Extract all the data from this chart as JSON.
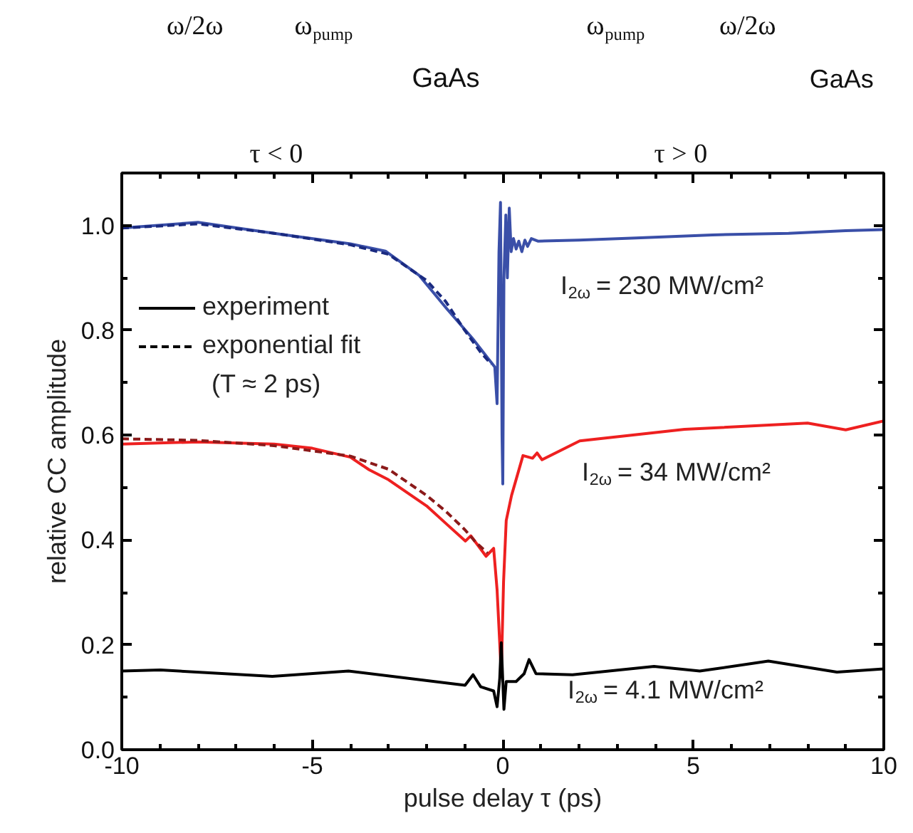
{
  "chart_data": {
    "type": "line",
    "xlabel": "pulse delay τ (ps)",
    "ylabel": "relative CC amplitude",
    "xlim": [
      -10,
      10
    ],
    "xticks": [
      -10,
      {
        "value": -9,
        "label": null
      },
      {
        "value": -8,
        "label": null
      },
      {
        "value": -7,
        "label": null
      },
      {
        "value": -6,
        "label": null
      },
      -5,
      {
        "value": -4,
        "label": null
      },
      {
        "value": -3,
        "label": null
      },
      {
        "value": -2,
        "label": null
      },
      {
        "value": -1,
        "label": null
      },
      0,
      {
        "value": 1,
        "label": null
      },
      {
        "value": 2,
        "label": null
      },
      {
        "value": 3,
        "label": null
      },
      {
        "value": 4,
        "label": null
      },
      5,
      {
        "value": 6,
        "label": null
      },
      {
        "value": 7,
        "label": null
      },
      {
        "value": 8,
        "label": null
      },
      {
        "value": 9,
        "label": null
      },
      10
    ],
    "ylim": [
      0,
      1.1
    ],
    "yticks": [
      {
        "value": 0,
        "label": "0.0"
      },
      {
        "value": 0.1,
        "label": null
      },
      {
        "value": 0.2,
        "label": "0.2"
      },
      {
        "value": 0.3,
        "label": null
      },
      {
        "value": 0.4,
        "label": "0.4"
      },
      {
        "value": 0.5,
        "label": null
      },
      {
        "value": 0.6,
        "label": "0.6"
      },
      {
        "value": 0.7,
        "label": null
      },
      {
        "value": 0.8,
        "label": "0.8"
      },
      {
        "value": 0.9,
        "label": null
      },
      {
        "value": 1.0,
        "label": "1.0"
      }
    ],
    "grid": false,
    "marker": "none",
    "series": [
      {
        "color": "#3a4fa8",
        "line_style": "solid",
        "x": [
          -10,
          -8,
          -6,
          -4,
          -3.08,
          -2.2,
          -1.48,
          -0.8,
          -0.36,
          -0.21,
          -0.15,
          -0.1,
          -0.06,
          -0.02,
          0.0,
          0.03,
          0.08,
          0.12,
          0.17,
          0.22,
          0.28,
          0.35,
          0.42,
          0.5,
          0.58,
          0.65,
          0.75,
          0.92,
          2,
          3.5,
          5.5,
          7.5,
          9,
          10
        ],
        "values": [
          0.995,
          1.006,
          0.985,
          0.965,
          0.951,
          0.905,
          0.842,
          0.785,
          0.744,
          0.73,
          0.66,
          0.95,
          1.044,
          0.6,
          0.507,
          0.9,
          1.02,
          0.9,
          1.033,
          0.95,
          0.975,
          0.955,
          0.97,
          0.95,
          0.972,
          0.96,
          0.975,
          0.97,
          0.972,
          0.976,
          0.982,
          0.985,
          0.99,
          0.992
        ]
      },
      {
        "color": "#1a2a80",
        "line_style": "dashed",
        "x": [
          -10,
          -8,
          -6,
          -4,
          -3,
          -2,
          -1.5,
          -1,
          -0.6,
          -0.3
        ],
        "values": [
          0.995,
          1.003,
          0.985,
          0.963,
          0.945,
          0.895,
          0.855,
          0.8,
          0.76,
          0.735
        ]
      },
      {
        "color": "#ee2020",
        "line_style": "solid",
        "x": [
          -10,
          -8,
          -6,
          -5,
          -4,
          -3.51,
          -3,
          -2,
          -1.5,
          -0.98,
          -0.84,
          -0.44,
          -0.24,
          -0.15,
          -0.04,
          0.02,
          0.09,
          0.23,
          0.53,
          0.78,
          0.9,
          1.03,
          2.02,
          4.77,
          8.0,
          9.0,
          10
        ],
        "values": [
          0.583,
          0.587,
          0.583,
          0.575,
          0.558,
          0.534,
          0.515,
          0.465,
          0.432,
          0.398,
          0.408,
          0.369,
          0.384,
          0.305,
          0.144,
          0.32,
          0.437,
          0.485,
          0.561,
          0.556,
          0.566,
          0.553,
          0.589,
          0.611,
          0.623,
          0.61,
          0.627
        ]
      },
      {
        "color": "#8b1a1a",
        "line_style": "dashed",
        "x": [
          -10,
          -8,
          -6,
          -4,
          -3,
          -2,
          -1.5,
          -1,
          -0.7,
          -0.4
        ],
        "values": [
          0.593,
          0.59,
          0.58,
          0.56,
          0.535,
          0.485,
          0.455,
          0.42,
          0.395,
          0.375
        ]
      },
      {
        "color": "#000000",
        "line_style": "solid",
        "x": [
          -10,
          -8.99,
          -6.05,
          -4.05,
          -0.99,
          -0.78,
          -0.58,
          -0.24,
          -0.15,
          -0.08,
          -0.04,
          0.03,
          0.09,
          0.35,
          0.56,
          0.69,
          0.87,
          1.83,
          3.97,
          5.17,
          6.97,
          8.77,
          10
        ],
        "values": [
          0.15,
          0.152,
          0.14,
          0.15,
          0.123,
          0.143,
          0.12,
          0.112,
          0.082,
          0.136,
          0.204,
          0.077,
          0.13,
          0.13,
          0.145,
          0.172,
          0.145,
          0.143,
          0.159,
          0.15,
          0.169,
          0.148,
          0.154
        ]
      }
    ],
    "annotations": [
      "I$_{2ω}$ = 230 MW/cm²",
      "I$_{2ω}$ = 34 MW/cm²",
      "I$_{2ω}$ = 4.1 MW/cm²",
      "experiment",
      "exponential fit",
      "(T ≈ 2 ps)",
      "ω/2ω",
      "ω$_{pump}$",
      "GaAs",
      "τ < 0",
      "ω$_{pump}$",
      "ω/2ω",
      "GaAs",
      "τ > 0"
    ]
  }
}
